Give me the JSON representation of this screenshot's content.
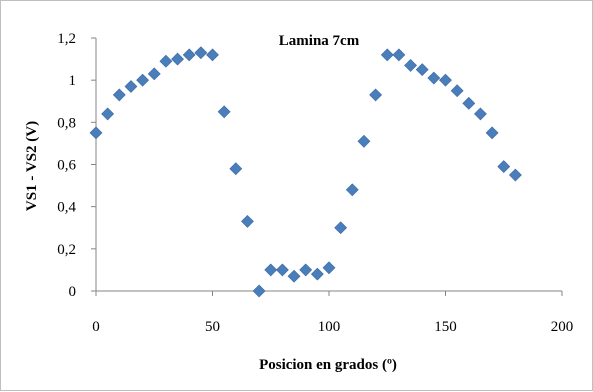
{
  "chart_data": {
    "type": "scatter",
    "title": "Lamina 7cm",
    "xlabel": "Posicion en grados (º)",
    "ylabel": "VS1 - VS2 (V)",
    "xlim": [
      0,
      200
    ],
    "ylim": [
      0,
      1.2
    ],
    "x_ticks": [
      "0",
      "50",
      "100",
      "150",
      "200"
    ],
    "y_ticks": [
      "0",
      "0,2",
      "0,4",
      "0,6",
      "0,8",
      "1",
      "1,2"
    ],
    "grid": false,
    "legend": "none",
    "marker_color": "#4a7ebb",
    "series": [
      {
        "x": [
          0,
          5,
          10,
          15,
          20,
          25,
          30,
          35,
          40,
          45,
          50,
          55,
          60,
          65,
          70,
          75,
          80,
          85,
          90,
          95,
          100,
          105,
          110,
          115,
          120,
          125,
          130,
          135,
          140,
          145,
          150,
          155,
          160,
          165,
          170,
          175,
          180
        ],
        "y": [
          0.75,
          0.84,
          0.93,
          0.97,
          1.0,
          1.03,
          1.09,
          1.1,
          1.12,
          1.13,
          1.12,
          0.85,
          0.58,
          0.33,
          0.0,
          0.1,
          0.1,
          0.07,
          0.1,
          0.08,
          0.11,
          0.3,
          0.48,
          0.71,
          0.93,
          1.12,
          1.12,
          1.07,
          1.05,
          1.01,
          1.0,
          0.95,
          0.89,
          0.84,
          0.75,
          0.59,
          0.55
        ]
      }
    ]
  }
}
